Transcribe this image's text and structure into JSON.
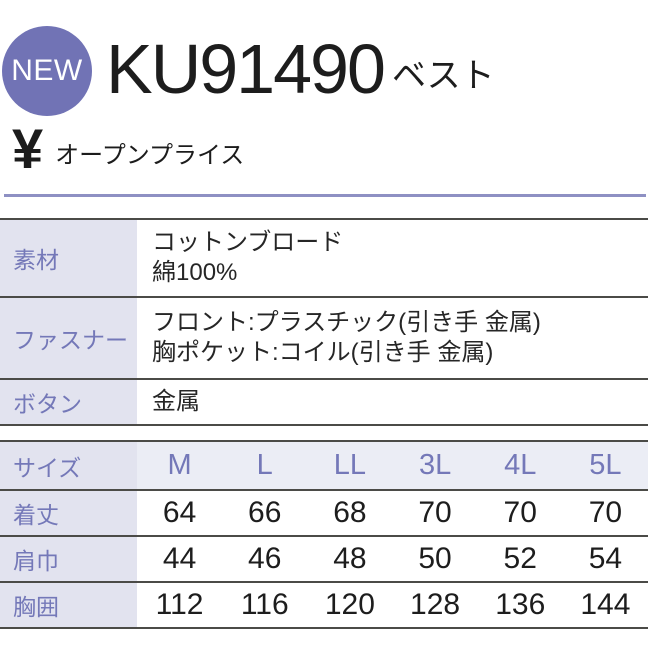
{
  "header": {
    "badge_label": "NEW",
    "product_code": "KU91490",
    "product_type": "ベスト",
    "currency_symbol": "¥",
    "price_label": "オープンプライス"
  },
  "spec_table": {
    "rows": [
      {
        "label": "素材",
        "lines": [
          "コットンブロード",
          "綿100%"
        ]
      },
      {
        "label": "ファスナー",
        "lines": [
          "フロント:プラスチック(引き手 金属)",
          "胸ポケット:コイル(引き手 金属)"
        ]
      },
      {
        "label": "ボタン",
        "lines": [
          "金属"
        ]
      }
    ]
  },
  "size_table": {
    "header_label": "サイズ",
    "sizes": [
      "M",
      "L",
      "LL",
      "3L",
      "4L",
      "5L"
    ],
    "rows": [
      {
        "label": "着丈",
        "values": [
          64,
          66,
          68,
          70,
          70,
          70
        ]
      },
      {
        "label": "肩巾",
        "values": [
          44,
          46,
          48,
          50,
          52,
          54
        ]
      },
      {
        "label": "胸囲",
        "values": [
          112,
          116,
          120,
          128,
          136,
          144
        ]
      }
    ]
  },
  "colors": {
    "badge_bg": "#7173b5",
    "label_text": "#7478b8",
    "label_cell_bg": "#e2e3ef",
    "header_row_bg": "#ebedf5",
    "divider_purple": "#8e90c3",
    "table_border": "#4b4b47",
    "text_dark": "#1d1d1d"
  }
}
